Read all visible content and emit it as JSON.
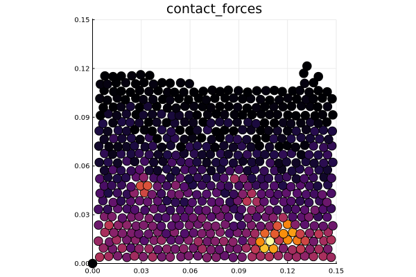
{
  "chart_data": {
    "type": "scatter",
    "title": "contact_forces",
    "xlabel": "",
    "ylabel": "",
    "xlim": [
      0.0,
      0.15
    ],
    "ylim": [
      0.0,
      0.15
    ],
    "xticks": [
      "0.00",
      "0.03",
      "0.06",
      "0.09",
      "0.12",
      "0.15"
    ],
    "yticks": [
      "0.00",
      "0.03",
      "0.06",
      "0.09",
      "0.12",
      "0.15"
    ],
    "grid": true,
    "legend": "none",
    "colormap": "inferno",
    "marker_radius_data_units": 0.0027,
    "domain": {
      "x": [
        0.0015,
        0.1485
      ],
      "y": [
        0.0015,
        0.1225
      ]
    },
    "surface": [
      {
        "x": 0.0,
        "y": 0.1165
      },
      {
        "x": 0.01,
        "y": 0.1205
      },
      {
        "x": 0.02,
        "y": 0.1195
      },
      {
        "x": 0.03,
        "y": 0.1185
      },
      {
        "x": 0.04,
        "y": 0.1145
      },
      {
        "x": 0.05,
        "y": 0.113
      },
      {
        "x": 0.06,
        "y": 0.1115
      },
      {
        "x": 0.07,
        "y": 0.1085
      },
      {
        "x": 0.08,
        "y": 0.1085
      },
      {
        "x": 0.09,
        "y": 0.108
      },
      {
        "x": 0.1,
        "y": 0.1085
      },
      {
        "x": 0.11,
        "y": 0.1085
      },
      {
        "x": 0.12,
        "y": 0.1075
      },
      {
        "x": 0.125,
        "y": 0.1085
      },
      {
        "x": 0.132,
        "y": 0.1175
      },
      {
        "x": 0.14,
        "y": 0.1115
      },
      {
        "x": 0.148,
        "y": 0.1095
      }
    ],
    "force_field": {
      "base": 0.4,
      "depth_gain": 1.4,
      "hotspots": [
        {
          "x": 0.031,
          "y": 0.049,
          "s": 0.006,
          "a": 0.3
        },
        {
          "x": 0.032,
          "y": 0.043,
          "s": 0.006,
          "a": 0.25
        },
        {
          "x": 0.052,
          "y": 0.046,
          "s": 0.005,
          "a": 0.22
        },
        {
          "x": 0.089,
          "y": 0.053,
          "s": 0.005,
          "a": 0.25
        },
        {
          "x": 0.094,
          "y": 0.04,
          "s": 0.006,
          "a": 0.3
        },
        {
          "x": 0.102,
          "y": 0.038,
          "s": 0.005,
          "a": 0.22
        },
        {
          "x": 0.106,
          "y": 0.016,
          "s": 0.006,
          "a": 0.5
        },
        {
          "x": 0.109,
          "y": 0.01,
          "s": 0.005,
          "a": 0.48
        },
        {
          "x": 0.118,
          "y": 0.023,
          "s": 0.005,
          "a": 0.4
        },
        {
          "x": 0.12,
          "y": 0.017,
          "s": 0.005,
          "a": 0.42
        },
        {
          "x": 0.127,
          "y": 0.014,
          "s": 0.006,
          "a": 0.28
        },
        {
          "x": 0.143,
          "y": 0.016,
          "s": 0.005,
          "a": 0.25
        },
        {
          "x": 0.012,
          "y": 0.022,
          "s": 0.006,
          "a": 0.18
        },
        {
          "x": 0.07,
          "y": 0.02,
          "s": 0.008,
          "a": 0.12
        }
      ]
    },
    "outliers": [
      {
        "x": 0.0,
        "y": 0.0,
        "v": 0.0
      },
      {
        "x": 0.132,
        "y": 0.1215,
        "v": 0.0
      },
      {
        "x": 0.13,
        "y": 0.117,
        "v": 0.0
      },
      {
        "x": 0.139,
        "y": 0.115,
        "v": 0.0
      }
    ]
  }
}
